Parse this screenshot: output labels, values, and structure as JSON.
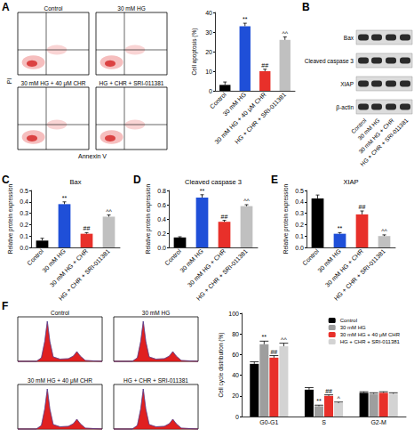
{
  "panel_letters": [
    "A",
    "B",
    "C",
    "D",
    "E",
    "F"
  ],
  "flow_cytometry": {
    "x_label": "Annexin V",
    "y_label": "PI",
    "plots": [
      "Control",
      "30 mM HG",
      "30 mM HG + 40 μM CHR",
      "HG + CHR + SRI-011381"
    ]
  },
  "western_blot": {
    "proteins": [
      "Bax",
      "Cleaved caspase 3",
      "XIAP",
      "β-actin"
    ],
    "lanes": [
      "Control",
      "30 mM HG",
      "30 mM HG + CHR",
      "HG + CHR + SRI-011381"
    ]
  },
  "cell_cycle_histograms": {
    "plots": [
      "Control",
      "30 mM HG",
      "30 mM HG + 40 μM CHR",
      "HG + CHR + SRI-011381"
    ]
  },
  "chart_data": [
    {
      "type": "bar",
      "ylabel": "Cell apoptosis (%)",
      "categories": [
        "Control",
        "30 mM HG",
        "30 mM HG + 40 μM CHR",
        "HG + CHR + SRI-011381"
      ],
      "values": [
        3,
        33,
        10,
        26
      ],
      "errors": [
        1.5,
        1.5,
        1,
        1.5
      ],
      "annotations": [
        null,
        "**",
        "##",
        "^^"
      ],
      "colors": [
        "#000000",
        "#1f4fd8",
        "#e8302a",
        "#c0c0c0"
      ],
      "ylim": [
        0,
        40
      ],
      "yticks": [
        0,
        10,
        20,
        30,
        40
      ],
      "grid": false
    },
    {
      "type": "bar",
      "title": "Bax",
      "ylabel": "Relative protein expression",
      "categories": [
        "Control",
        "30 mM HG",
        "30 mM HG + CHR",
        "HG + CHR + SRI-011381"
      ],
      "values": [
        0.06,
        0.38,
        0.12,
        0.27
      ],
      "errors": [
        0.02,
        0.02,
        0.01,
        0.015
      ],
      "annotations": [
        null,
        "**",
        "##",
        "^^"
      ],
      "colors": [
        "#000000",
        "#1f4fd8",
        "#e8302a",
        "#c0c0c0"
      ],
      "ylim": [
        0,
        0.5
      ],
      "yticks": [
        {
          "value": 0,
          "label": "0.0"
        },
        0.1,
        0.2,
        0.3,
        0.4,
        0.5
      ],
      "grid": false
    },
    {
      "type": "bar",
      "title": "Cleaved caspase 3",
      "ylabel": "Relative protein expression",
      "categories": [
        "Control",
        "30 mM HG",
        "30 mM HG + CHR",
        "HG + CHR + SRI-011381"
      ],
      "values": [
        0.14,
        0.7,
        0.36,
        0.58
      ],
      "errors": [
        0.01,
        0.04,
        0.02,
        0.02
      ],
      "annotations": [
        null,
        "**",
        "##",
        "^^"
      ],
      "colors": [
        "#000000",
        "#1f4fd8",
        "#e8302a",
        "#c0c0c0"
      ],
      "ylim": [
        0,
        0.8
      ],
      "yticks": [
        {
          "value": 0,
          "label": "0.0"
        },
        0.2,
        0.4,
        0.6,
        0.8
      ],
      "grid": false
    },
    {
      "type": "bar",
      "title": "XIAP",
      "ylabel": "Relative protein expression",
      "categories": [
        "Control",
        "30 mM HG",
        "30 mM HG + CHR",
        "HG + CHR + SRI-011381"
      ],
      "values": [
        0.43,
        0.12,
        0.29,
        0.1
      ],
      "errors": [
        0.03,
        0.01,
        0.03,
        0.01
      ],
      "annotations": [
        null,
        "**",
        "##",
        "^^"
      ],
      "colors": [
        "#000000",
        "#1f4fd8",
        "#e8302a",
        "#c0c0c0"
      ],
      "ylim": [
        0,
        0.5
      ],
      "yticks": [
        {
          "value": 0,
          "label": "0.0"
        },
        0.1,
        0.2,
        0.3,
        0.4,
        0.5
      ],
      "grid": false
    },
    {
      "type": "bar",
      "ylabel": "Cell cycle distribution (%)",
      "categories": [
        "G0-G1",
        "S",
        "G2-M"
      ],
      "series": [
        {
          "name": "Control",
          "color": "#000000",
          "values": [
            51,
            26,
            23
          ],
          "errors": [
            2,
            2,
            1
          ],
          "annotations": [
            null,
            null,
            null
          ]
        },
        {
          "name": "30 mM HG",
          "color": "#9e9e9e",
          "values": [
            70,
            10,
            22
          ],
          "errors": [
            3,
            1,
            1
          ],
          "annotations": [
            "**",
            "**",
            null
          ]
        },
        {
          "name": "30 mM HG + 40 μM CHR",
          "color": "#e8302a",
          "values": [
            57,
            20,
            23
          ],
          "errors": [
            2,
            1,
            1
          ],
          "annotations": [
            "##",
            "##",
            null
          ]
        },
        {
          "name": "HG + CHR + SRI-011381",
          "color": "#d3d3d3",
          "values": [
            68,
            13,
            22
          ],
          "errors": [
            3,
            1,
            1
          ],
          "annotations": [
            "^^",
            "^",
            null
          ]
        }
      ],
      "ylim": [
        0,
        100
      ],
      "yticks": [
        0,
        20,
        40,
        60,
        80,
        100
      ],
      "legend": "upper right",
      "grid": false
    }
  ]
}
